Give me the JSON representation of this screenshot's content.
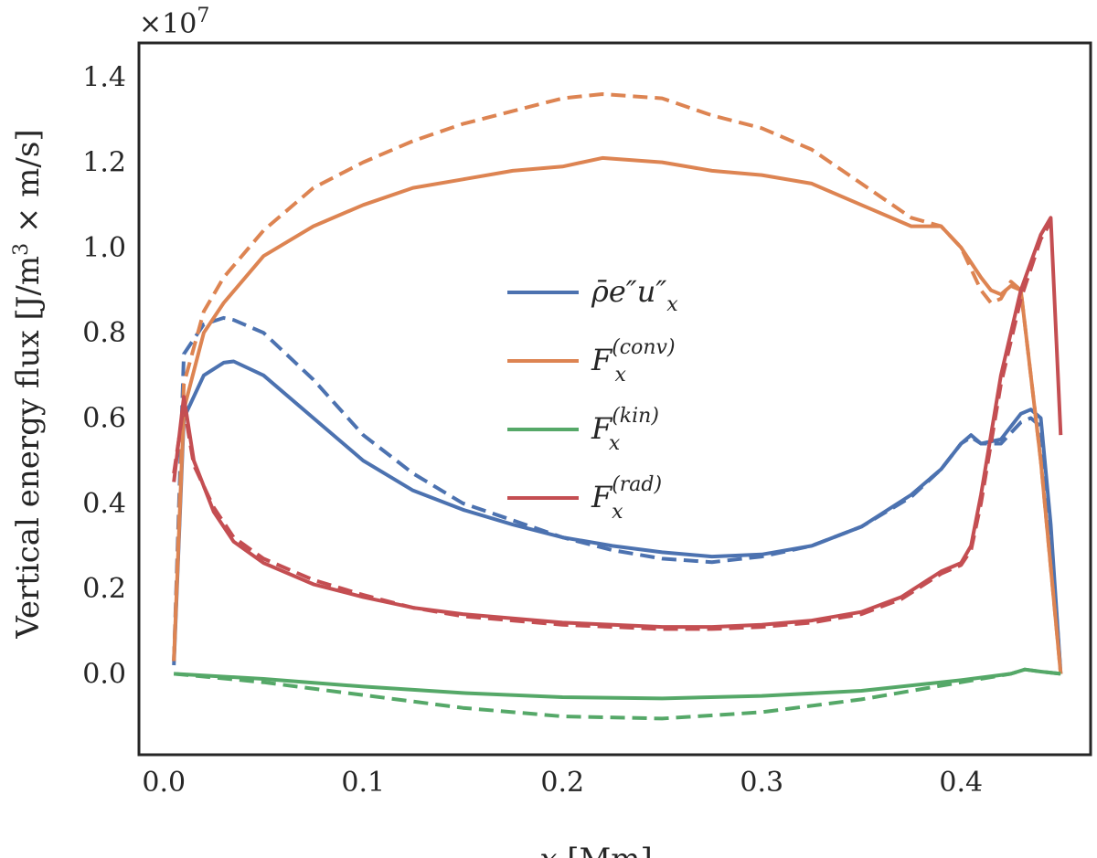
{
  "chart_data": {
    "type": "line",
    "title": "",
    "xlabel": "x [Mm]",
    "ylabel": "Vertical energy flux [J/m3 × m/s]",
    "y_multiplier": "×10^7",
    "xlim": [
      -0.0125,
      0.465
    ],
    "ylim": [
      -0.19,
      1.48
    ],
    "xticks": [
      0.0,
      0.1,
      0.2,
      0.3,
      0.4
    ],
    "xtick_labels": [
      "0.0",
      "0.1",
      "0.2",
      "0.3",
      "0.4"
    ],
    "yticks": [
      0.0,
      0.2,
      0.4,
      0.6,
      0.8,
      1.0,
      1.2,
      1.4
    ],
    "ytick_labels": [
      "0.0",
      "0.2",
      "0.4",
      "0.6",
      "0.8",
      "1.0",
      "1.2",
      "1.4"
    ],
    "grid": false,
    "legend_position": "center",
    "series": [
      {
        "name": "ρ̄ e″u″x (Favre)",
        "legend": "rho-e-u",
        "color": "#4C72B0",
        "dash": false,
        "x": [
          0.005,
          0.01,
          0.02,
          0.03,
          0.035,
          0.05,
          0.075,
          0.1,
          0.125,
          0.15,
          0.175,
          0.2,
          0.225,
          0.25,
          0.275,
          0.3,
          0.325,
          0.35,
          0.375,
          0.39,
          0.4,
          0.405,
          0.41,
          0.42,
          0.43,
          0.435,
          0.44,
          0.445,
          0.45
        ],
        "y": [
          0.02,
          0.6,
          0.7,
          0.73,
          0.733,
          0.7,
          0.6,
          0.5,
          0.43,
          0.385,
          0.35,
          0.32,
          0.3,
          0.285,
          0.275,
          0.28,
          0.3,
          0.345,
          0.42,
          0.48,
          0.54,
          0.56,
          0.54,
          0.55,
          0.61,
          0.62,
          0.6,
          0.35,
          0.0
        ]
      },
      {
        "name": "ρ̄ e″u″x (Favre) dashed",
        "legend": "",
        "color": "#4C72B0",
        "dash": true,
        "x": [
          0.005,
          0.01,
          0.02,
          0.03,
          0.035,
          0.05,
          0.075,
          0.1,
          0.125,
          0.15,
          0.175,
          0.2,
          0.225,
          0.25,
          0.275,
          0.3,
          0.325,
          0.35,
          0.375,
          0.39,
          0.4,
          0.405,
          0.41,
          0.42,
          0.43,
          0.435,
          0.44,
          0.445,
          0.45
        ],
        "y": [
          0.03,
          0.75,
          0.82,
          0.835,
          0.83,
          0.8,
          0.69,
          0.56,
          0.47,
          0.4,
          0.36,
          0.32,
          0.29,
          0.27,
          0.262,
          0.275,
          0.3,
          0.345,
          0.415,
          0.48,
          0.54,
          0.555,
          0.54,
          0.54,
          0.59,
          0.6,
          0.58,
          0.33,
          0.0
        ]
      },
      {
        "name": "F_x^(conv)",
        "legend": "conv",
        "color": "#DD8452",
        "dash": false,
        "x": [
          0.005,
          0.01,
          0.02,
          0.03,
          0.05,
          0.075,
          0.1,
          0.125,
          0.15,
          0.175,
          0.2,
          0.22,
          0.25,
          0.275,
          0.3,
          0.325,
          0.35,
          0.375,
          0.39,
          0.4,
          0.41,
          0.415,
          0.42,
          0.425,
          0.43,
          0.44,
          0.45
        ],
        "y": [
          0.03,
          0.62,
          0.8,
          0.87,
          0.98,
          1.05,
          1.1,
          1.14,
          1.16,
          1.18,
          1.19,
          1.21,
          1.2,
          1.18,
          1.17,
          1.15,
          1.1,
          1.05,
          1.05,
          1.0,
          0.93,
          0.9,
          0.89,
          0.91,
          0.9,
          0.5,
          0.0
        ]
      },
      {
        "name": "F_x^(conv) dashed",
        "legend": "",
        "color": "#DD8452",
        "dash": true,
        "x": [
          0.005,
          0.01,
          0.02,
          0.03,
          0.05,
          0.075,
          0.1,
          0.125,
          0.15,
          0.175,
          0.2,
          0.22,
          0.25,
          0.275,
          0.3,
          0.325,
          0.35,
          0.375,
          0.39,
          0.4,
          0.41,
          0.415,
          0.42,
          0.425,
          0.43,
          0.44,
          0.45
        ],
        "y": [
          0.03,
          0.68,
          0.85,
          0.93,
          1.04,
          1.14,
          1.2,
          1.25,
          1.29,
          1.32,
          1.35,
          1.36,
          1.35,
          1.31,
          1.28,
          1.23,
          1.15,
          1.07,
          1.05,
          1.0,
          0.9,
          0.87,
          0.88,
          0.92,
          0.9,
          0.5,
          0.0
        ]
      },
      {
        "name": "F_x^(kin)",
        "legend": "kin",
        "color": "#55A868",
        "dash": false,
        "x": [
          0.005,
          0.05,
          0.1,
          0.15,
          0.2,
          0.25,
          0.3,
          0.35,
          0.4,
          0.425,
          0.432,
          0.44,
          0.45
        ],
        "y": [
          0.0,
          -0.012,
          -0.03,
          -0.045,
          -0.055,
          -0.058,
          -0.052,
          -0.04,
          -0.015,
          0.0,
          0.01,
          0.005,
          0.0
        ]
      },
      {
        "name": "F_x^(kin) dashed",
        "legend": "",
        "color": "#55A868",
        "dash": true,
        "x": [
          0.005,
          0.05,
          0.1,
          0.15,
          0.2,
          0.25,
          0.3,
          0.35,
          0.4,
          0.425,
          0.432,
          0.44,
          0.45
        ],
        "y": [
          0.0,
          -0.02,
          -0.05,
          -0.08,
          -0.1,
          -0.105,
          -0.09,
          -0.06,
          -0.02,
          0.0,
          0.01,
          0.005,
          0.0
        ]
      },
      {
        "name": "F_x^(rad)",
        "legend": "rad",
        "color": "#C44E52",
        "dash": false,
        "x": [
          0.005,
          0.01,
          0.015,
          0.025,
          0.035,
          0.05,
          0.075,
          0.1,
          0.125,
          0.15,
          0.175,
          0.2,
          0.225,
          0.25,
          0.275,
          0.3,
          0.325,
          0.35,
          0.37,
          0.39,
          0.4,
          0.405,
          0.41,
          0.42,
          0.43,
          0.44,
          0.445,
          0.45
        ],
        "y": [
          0.45,
          0.65,
          0.5,
          0.38,
          0.31,
          0.26,
          0.21,
          0.18,
          0.155,
          0.14,
          0.13,
          0.12,
          0.115,
          0.11,
          0.11,
          0.115,
          0.125,
          0.145,
          0.18,
          0.24,
          0.26,
          0.3,
          0.42,
          0.7,
          0.9,
          1.03,
          1.07,
          0.56
        ]
      },
      {
        "name": "F_x^(rad) dashed",
        "legend": "",
        "color": "#C44E52",
        "dash": true,
        "x": [
          0.005,
          0.01,
          0.015,
          0.025,
          0.035,
          0.05,
          0.075,
          0.1,
          0.125,
          0.15,
          0.175,
          0.2,
          0.225,
          0.25,
          0.275,
          0.3,
          0.325,
          0.35,
          0.37,
          0.39,
          0.4,
          0.405,
          0.41,
          0.42,
          0.43,
          0.44,
          0.445
        ],
        "y": [
          0.47,
          0.63,
          0.49,
          0.39,
          0.32,
          0.27,
          0.22,
          0.185,
          0.155,
          0.135,
          0.125,
          0.115,
          0.11,
          0.105,
          0.105,
          0.11,
          0.12,
          0.14,
          0.175,
          0.235,
          0.255,
          0.29,
          0.4,
          0.68,
          0.88,
          1.02,
          1.06
        ]
      }
    ],
    "legend_entries": [
      {
        "key": "rho-e-u",
        "label": "ρ̄e″u″",
        "sub": "x",
        "sup": "",
        "color": "#4C72B0"
      },
      {
        "key": "conv",
        "label": "F",
        "sub": "x",
        "sup": "(conv)",
        "color": "#DD8452"
      },
      {
        "key": "kin",
        "label": "F",
        "sub": "x",
        "sup": "(kin)",
        "color": "#55A868"
      },
      {
        "key": "rad",
        "label": "F",
        "sub": "x",
        "sup": "(rad)",
        "color": "#C44E52"
      }
    ]
  }
}
